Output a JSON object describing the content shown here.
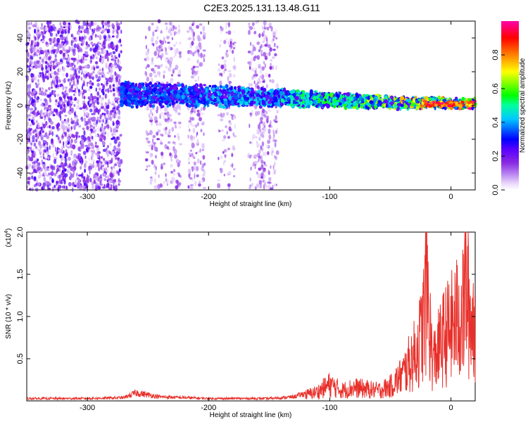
{
  "title": "C2E3.2025.131.13.48.G11",
  "chart_data": [
    {
      "type": "heatmap",
      "name": "spectrogram",
      "xlabel": "Height of straight line (km)",
      "ylabel": "Frequency (Hz)",
      "xlim": [
        -350,
        20
      ],
      "ylim": [
        -50,
        50
      ],
      "xticks": [
        -300,
        -200,
        -100,
        0
      ],
      "yticks": [
        -40,
        -20,
        0,
        20,
        40
      ],
      "colorbar": {
        "label": "Normalized spectral amplitude",
        "range": [
          0,
          1
        ],
        "ticks": [
          0.0,
          0.2,
          0.4,
          0.6,
          0.8
        ],
        "ticklabels": [
          "0.0",
          "0.2",
          "0.4",
          "0.6",
          "0.8"
        ],
        "colormap": [
          "#ffffff",
          "#e9d5fb",
          "#b47cf0",
          "#8a2be2",
          "#5a00ff",
          "#0000ff",
          "#00c8ff",
          "#00ffa0",
          "#00ff00",
          "#ffff00",
          "#ff8000",
          "#ff0000",
          "#ff00aa"
        ]
      },
      "features": [
        {
          "desc": "broadband noise",
          "x_range": [
            -350,
            -272
          ],
          "freq_range": [
            -50,
            50
          ],
          "intensity": 0.18
        },
        {
          "desc": "sparse noise",
          "x_range": [
            -265,
            -140
          ],
          "freq_range": [
            -50,
            50
          ],
          "intensity": 0.1
        },
        {
          "desc": "signal band",
          "x_range": [
            -272,
            20
          ],
          "center_freq_start": 7,
          "center_freq_end": 1,
          "intensity_start": 0.35,
          "intensity_end": 0.95
        }
      ]
    },
    {
      "type": "line",
      "name": "snr",
      "xlabel": "Height of straight line (km)",
      "ylabel": "SNR (10 * v/v)",
      "scale_label": "(x10",
      "scale_exp": "4",
      "scale_close": ")",
      "xlim": [
        -350,
        20
      ],
      "ylim": [
        0,
        2.0
      ],
      "xticks": [
        -300,
        -200,
        -100,
        0
      ],
      "yticks": [
        0.5,
        1.0,
        1.5,
        2.0
      ],
      "yticklabels": [
        "0.5",
        "1.0",
        "1.5",
        "2.0"
      ],
      "color": "#e8302a",
      "series": {
        "x": [
          -350,
          -300,
          -270,
          -260,
          -240,
          -200,
          -150,
          -130,
          -110,
          -100,
          -90,
          -80,
          -70,
          -60,
          -50,
          -40,
          -35,
          -30,
          -25,
          -22,
          -20,
          -18,
          -15,
          -10,
          -5,
          0,
          5,
          10,
          12,
          15,
          18,
          20
        ],
        "values": [
          0.03,
          0.03,
          0.04,
          0.1,
          0.05,
          0.03,
          0.03,
          0.05,
          0.14,
          0.25,
          0.16,
          0.2,
          0.18,
          0.16,
          0.22,
          0.4,
          0.55,
          0.7,
          0.95,
          1.3,
          2.0,
          1.2,
          0.6,
          0.8,
          1.0,
          1.1,
          1.25,
          1.3,
          1.9,
          1.35,
          1.2,
          1.3
        ]
      }
    }
  ]
}
